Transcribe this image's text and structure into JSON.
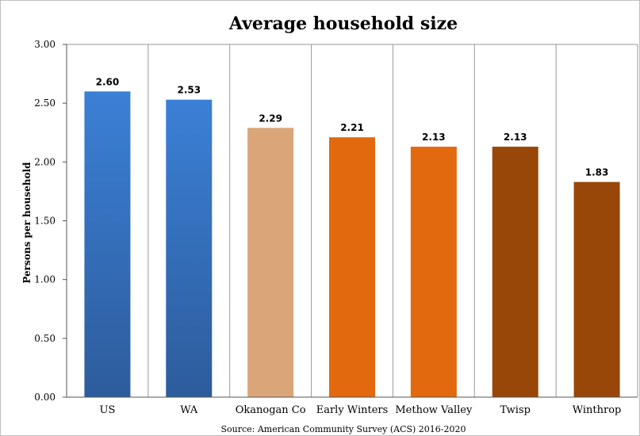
{
  "chart_data": {
    "type": "bar",
    "title": "Average household size",
    "ylabel": "Persons per household",
    "xlabel": "",
    "source": "Source: American Community Survey (ACS) 2016-2020",
    "categories": [
      "US",
      "WA",
      "Okanogan Co",
      "Early Winters",
      "Methow Valley",
      "Twisp",
      "Winthrop"
    ],
    "values": [
      2.6,
      2.53,
      2.29,
      2.21,
      2.13,
      2.13,
      1.83
    ],
    "value_labels": [
      "2.60",
      "2.53",
      "2.29",
      "2.21",
      "2.13",
      "2.13",
      "1.83"
    ],
    "yticks": [
      "0.00",
      "0.50",
      "1.00",
      "1.50",
      "2.00",
      "2.50",
      "3.00"
    ],
    "ylim": [
      0,
      3
    ],
    "grid": "vertical category separators",
    "legend": "none",
    "bar_colors": [
      {
        "top": "#3b80d6",
        "bottom": "#2d5c9c"
      },
      {
        "top": "#3b80d6",
        "bottom": "#2d5c9c"
      },
      {
        "top": "#dba57a",
        "bottom": "#dba57a"
      },
      {
        "top": "#e2690e",
        "bottom": "#e2690e"
      },
      {
        "top": "#e2690e",
        "bottom": "#e2690e"
      },
      {
        "top": "#984708",
        "bottom": "#984708"
      },
      {
        "top": "#984708",
        "bottom": "#984708"
      }
    ]
  }
}
